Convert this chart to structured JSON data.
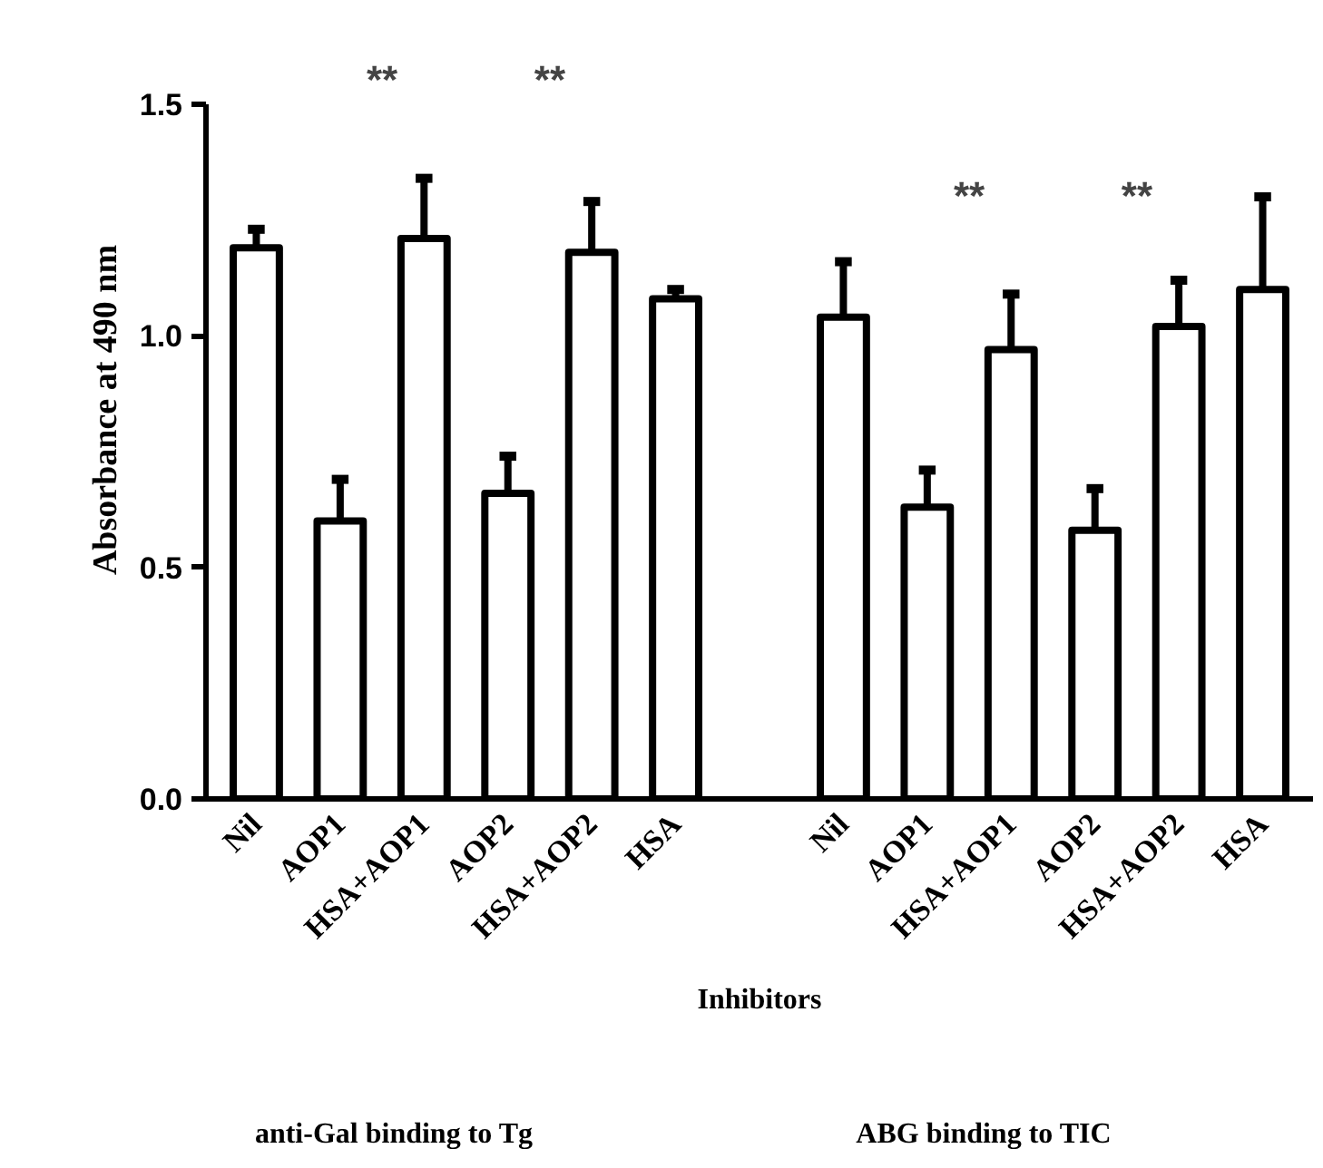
{
  "chart_data": {
    "type": "bar",
    "xlabel": "Inhibitors",
    "ylabel": "Absorbance at 490 nm",
    "categories": [
      "Nil",
      "AOP1",
      "HSA+AOP1",
      "AOP2",
      "HSA+AOP2",
      "HSA",
      null,
      "Nil",
      "AOP1",
      "HSA+AOP1",
      "AOP2",
      "HSA+AOP2",
      "HSA"
    ],
    "values": [
      1.19,
      0.6,
      1.21,
      0.66,
      1.18,
      1.08,
      null,
      1.04,
      0.63,
      0.97,
      0.58,
      1.02,
      1.1
    ],
    "errors": [
      [
        1.19,
        1.23
      ],
      [
        0.6,
        0.69
      ],
      [
        1.21,
        1.34
      ],
      [
        0.66,
        0.74
      ],
      [
        1.18,
        1.29
      ],
      [
        1.08,
        1.1
      ],
      null,
      [
        1.04,
        1.16
      ],
      [
        0.63,
        0.71
      ],
      [
        0.97,
        1.09
      ],
      [
        0.58,
        0.67
      ],
      [
        1.02,
        1.12
      ],
      [
        1.1,
        1.3
      ]
    ],
    "color": "#ffffff",
    "ylim": [
      0,
      1.5
    ],
    "yticks": [
      {
        "value": 0,
        "label": "0.0"
      },
      0.5,
      {
        "value": 1,
        "label": "1.0"
      },
      1.5
    ],
    "grid": false,
    "annotations": [
      "**",
      "**",
      "**",
      "**",
      "anti-Gal binding to Tg",
      "ABG binding to TIC"
    ]
  }
}
